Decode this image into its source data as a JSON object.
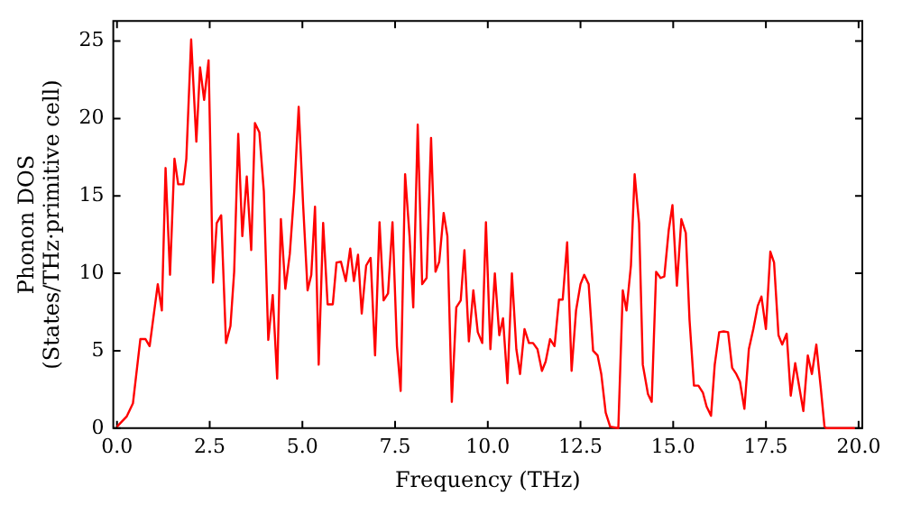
{
  "chart_data": {
    "type": "line",
    "xlabel": "Frequency (THz)",
    "ylabel": "Phonon DOS\n(States/THz·primitive cell)",
    "xlim": [
      -0.1,
      20.1
    ],
    "xticks": [
      {
        "value": 0,
        "label": "0.0"
      },
      {
        "value": 2.5,
        "label": "2.5"
      },
      {
        "value": 5,
        "label": "5.0"
      },
      {
        "value": 7.5,
        "label": "7.5"
      },
      {
        "value": 10,
        "label": "10.0"
      },
      {
        "value": 12.5,
        "label": "12.5"
      },
      {
        "value": 15,
        "label": "15.0"
      },
      {
        "value": 17.5,
        "label": "17.5"
      },
      {
        "value": 20,
        "label": "20.0"
      }
    ],
    "ylim": [
      0,
      26.3
    ],
    "yticks": [
      0,
      5,
      10,
      15,
      20,
      25
    ],
    "grid": false,
    "legend": false,
    "marker": "none",
    "line_style": "solid",
    "series": [
      {
        "color": "#ff0000",
        "x": [
          0,
          0.26,
          0.43,
          0.63,
          0.77,
          0.88,
          1.1,
          1.21,
          1.31,
          1.43,
          1.55,
          1.65,
          1.79,
          1.87,
          2.0,
          2.14,
          2.24,
          2.35,
          2.47,
          2.59,
          2.69,
          2.81,
          2.94,
          3.06,
          3.16,
          3.27,
          3.38,
          3.5,
          3.62,
          3.72,
          3.84,
          3.96,
          4.08,
          4.2,
          4.32,
          4.42,
          4.54,
          4.66,
          4.78,
          4.9,
          5.02,
          5.14,
          5.24,
          5.34,
          5.44,
          5.56,
          5.68,
          5.82,
          5.92,
          6.04,
          6.17,
          6.29,
          6.39,
          6.5,
          6.6,
          6.72,
          6.84,
          6.96,
          7.08,
          7.19,
          7.31,
          7.43,
          7.55,
          7.65,
          7.77,
          7.89,
          7.99,
          8.11,
          8.23,
          8.35,
          8.47,
          8.59,
          8.69,
          8.81,
          8.91,
          9.03,
          9.15,
          9.27,
          9.37,
          9.49,
          9.61,
          9.73,
          9.85,
          9.95,
          10.07,
          10.19,
          10.31,
          10.41,
          10.53,
          10.65,
          10.77,
          10.87,
          10.99,
          11.11,
          11.22,
          11.34,
          11.46,
          11.56,
          11.68,
          11.8,
          11.92,
          12.02,
          12.14,
          12.26,
          12.38,
          12.5,
          12.6,
          12.72,
          12.84,
          12.96,
          13.06,
          13.18,
          13.3,
          13.52,
          13.64,
          13.74,
          13.86,
          13.96,
          14.08,
          14.18,
          14.32,
          14.42,
          14.54,
          14.66,
          14.76,
          14.88,
          14.98,
          15.1,
          15.22,
          15.34,
          15.44,
          15.56,
          15.68,
          15.8,
          15.9,
          16.02,
          16.12,
          16.24,
          16.36,
          16.48,
          16.59,
          16.7,
          16.8,
          16.92,
          17.04,
          17.16,
          17.28,
          17.38,
          17.5,
          17.62,
          17.72,
          17.84,
          17.94,
          18.06,
          18.17,
          18.29,
          18.39,
          18.51,
          18.63,
          18.74,
          18.86,
          18.98,
          19.08,
          19.13,
          19.9
        ],
        "values": [
          0.1,
          0.75,
          1.6,
          5.75,
          5.75,
          5.3,
          9.3,
          7.6,
          16.8,
          9.9,
          17.4,
          15.75,
          15.75,
          17.4,
          25.1,
          18.5,
          23.3,
          21.2,
          23.75,
          9.4,
          13.25,
          13.75,
          5.5,
          6.6,
          10.1,
          19,
          12.4,
          16.25,
          11.5,
          19.7,
          19.1,
          15.3,
          5.7,
          8.6,
          3.2,
          13.5,
          9,
          11.25,
          15.3,
          20.75,
          14.4,
          8.9,
          9.9,
          14.3,
          4.1,
          13.25,
          8,
          8,
          10.7,
          10.75,
          9.5,
          11.6,
          9.5,
          11.2,
          7.4,
          10.5,
          11,
          4.7,
          13.3,
          8.25,
          8.7,
          13.3,
          5.3,
          2.4,
          16.4,
          12.4,
          7.8,
          19.6,
          9.3,
          9.7,
          18.75,
          10.1,
          10.75,
          13.9,
          12.4,
          1.7,
          7.8,
          8.25,
          11.5,
          5.6,
          8.9,
          6.2,
          5.5,
          13.3,
          5.1,
          10,
          6,
          7.1,
          2.9,
          10,
          5.1,
          3.5,
          6.4,
          5.5,
          5.5,
          5.1,
          3.7,
          4.3,
          5.75,
          5.3,
          8.3,
          8.3,
          12,
          3.7,
          7.6,
          9.3,
          9.9,
          9.3,
          5,
          4.7,
          3.5,
          1,
          0.1,
          0,
          8.9,
          7.6,
          10.5,
          16.4,
          13.25,
          4.1,
          2.2,
          1.7,
          10.1,
          9.7,
          9.8,
          12.8,
          14.4,
          9.2,
          13.5,
          12.6,
          7,
          2.75,
          2.75,
          2.3,
          1.4,
          0.8,
          4.1,
          6.2,
          6.25,
          6.2,
          3.9,
          3.5,
          3,
          1.25,
          5.1,
          6.4,
          7.9,
          8.5,
          6.4,
          11.4,
          10.7,
          6,
          5.4,
          6.1,
          2.1,
          4.2,
          2.8,
          1.1,
          4.7,
          3.5,
          5.4,
          2.6,
          0.1,
          0,
          0
        ]
      }
    ]
  }
}
